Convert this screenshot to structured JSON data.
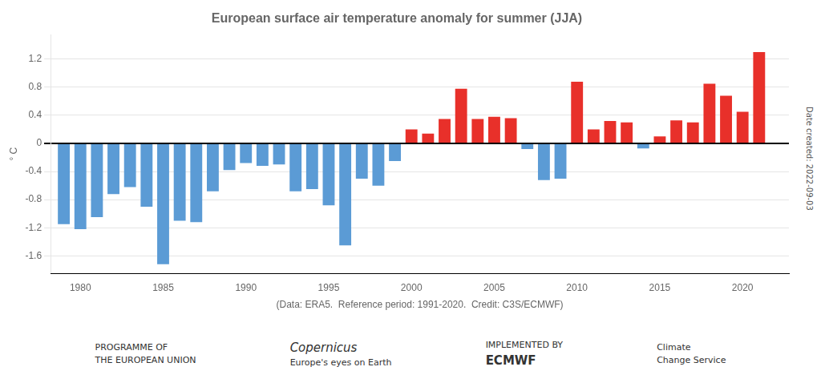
{
  "chart_data": {
    "type": "bar",
    "title": "European surface air temperature anomaly for summer (JJA)",
    "x_label": "(Data: ERA5.  Reference period: 1991-2020.  Credit: C3S/ECMWF)",
    "y_label": "° C",
    "x": [
      1979,
      1980,
      1981,
      1982,
      1983,
      1984,
      1985,
      1986,
      1987,
      1988,
      1989,
      1990,
      1991,
      1992,
      1993,
      1994,
      1995,
      1996,
      1997,
      1998,
      1999,
      2000,
      2001,
      2002,
      2003,
      2004,
      2005,
      2006,
      2007,
      2008,
      2009,
      2010,
      2011,
      2012,
      2013,
      2014,
      2015,
      2016,
      2017,
      2018,
      2019,
      2020,
      2021
    ],
    "values": [
      -1.15,
      -1.22,
      -1.05,
      -0.72,
      -0.62,
      -0.9,
      -1.72,
      -1.1,
      -1.12,
      -0.68,
      -0.38,
      -0.28,
      -0.32,
      -0.3,
      -0.68,
      -0.65,
      -0.88,
      -1.45,
      -0.5,
      -0.6,
      -0.25,
      0.2,
      0.14,
      0.35,
      0.78,
      0.35,
      0.38,
      0.36,
      -0.08,
      -0.52,
      -0.5,
      0.88,
      0.2,
      0.32,
      0.3,
      -0.07,
      0.1,
      0.33,
      0.3,
      0.85,
      0.68,
      0.45,
      1.3
    ],
    "colors": [
      "#5b9bd5",
      "#5b9bd5",
      "#5b9bd5",
      "#5b9bd5",
      "#5b9bd5",
      "#5b9bd5",
      "#5b9bd5",
      "#5b9bd5",
      "#5b9bd5",
      "#5b9bd5",
      "#5b9bd5",
      "#5b9bd5",
      "#5b9bd5",
      "#5b9bd5",
      "#5b9bd5",
      "#5b9bd5",
      "#5b9bd5",
      "#5b9bd5",
      "#5b9bd5",
      "#5b9bd5",
      "#5b9bd5",
      "#e8302a",
      "#e8302a",
      "#e8302a",
      "#e8302a",
      "#e8302a",
      "#e8302a",
      "#e8302a",
      "#5b9bd5",
      "#5b9bd5",
      "#5b9bd5",
      "#e8302a",
      "#e8302a",
      "#e8302a",
      "#e8302a",
      "#5b9bd5",
      "#e8302a",
      "#e8302a",
      "#e8302a",
      "#e8302a",
      "#e8302a",
      "#e8302a",
      "#e8302a"
    ],
    "xlim": [
      1978.2,
      2022.8
    ],
    "xticks": [
      1980,
      1985,
      1990,
      1995,
      2000,
      2005,
      2010,
      2015,
      2020
    ],
    "ylim": [
      -1.85,
      1.55
    ],
    "yticks": [
      -1.6,
      -1.2,
      -0.8,
      -0.4,
      0,
      0.4,
      0.8,
      1.2
    ],
    "grid": "y",
    "annotations": [
      "Date created: 2022-09-03",
      "PROGRAMME OF",
      "THE EUROPEAN UNION",
      "Copernicus",
      "Europe's eyes on Earth",
      "IMPLEMENTED BY",
      "ECMWF",
      "Climate",
      "Change Service"
    ]
  }
}
